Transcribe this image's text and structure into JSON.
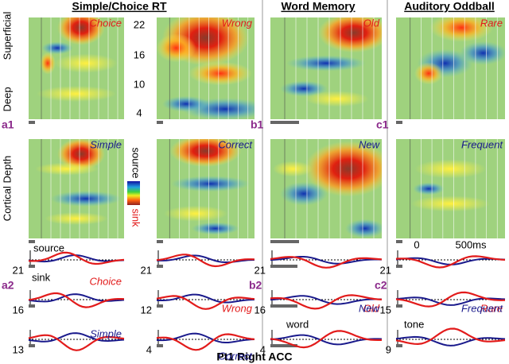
{
  "headers": [
    "Simple/Choice RT",
    "Word Memory",
    "Auditory Oddball"
  ],
  "panel_ids": [
    "a1",
    "b1",
    "c1",
    "a2",
    "b2",
    "c2"
  ],
  "heatmap_labels_top": [
    "Choice",
    "Wrong",
    "Old",
    "Rare"
  ],
  "heatmap_labels_bottom": [
    "Simple",
    "Correct",
    "New",
    "Frequent"
  ],
  "depth_axis": {
    "top": "Superficial",
    "bottom": "Deep",
    "title": "Cortical Depth",
    "ticks": [
      "22",
      "16",
      "10",
      "4"
    ]
  },
  "colorbar": {
    "top": "source",
    "bottom": "sink"
  },
  "traces": [
    {
      "channels": [
        "21",
        "16",
        "13"
      ],
      "labels": [
        "Choice",
        "Simple"
      ]
    },
    {
      "channels": [
        "21",
        "12",
        "4"
      ],
      "labels": [
        "Wrong",
        "Correct"
      ]
    },
    {
      "channels": [
        "21",
        "16",
        "4"
      ],
      "labels": [
        "Old",
        "New"
      ]
    },
    {
      "channels": [
        "21",
        "15",
        "9"
      ],
      "labels": [
        "Rare",
        "Frequent"
      ]
    }
  ],
  "annotations": {
    "source": "source",
    "sink": "sink",
    "word": "word",
    "tone": "tone",
    "t0": "0",
    "t500": "500ms"
  },
  "footer": "Pt1 Right ACC"
}
